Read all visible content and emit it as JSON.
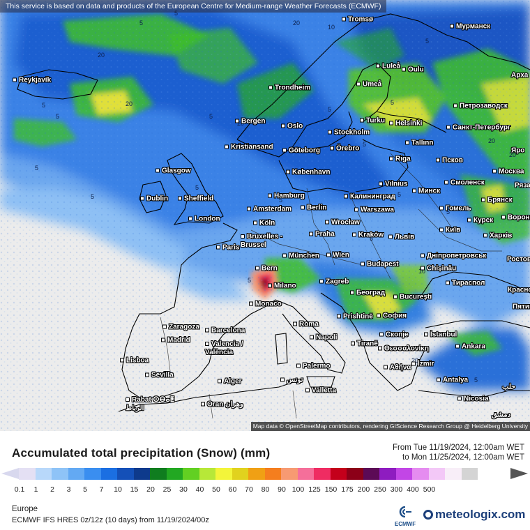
{
  "map": {
    "notice": "This service is based on data and products of the European Centre for Medium-range Weather Forecasts (ECMWF)",
    "attribution": "Map data © OpenStreetMap contributors, rendering GIScience Research Group @ Heidelberg University",
    "cities": [
      {
        "name": "Tromsø"
      },
      {
        "name": "Мурманск"
      },
      {
        "name": "Reykjavík"
      },
      {
        "name": "Luleå"
      },
      {
        "name": "Oulu"
      },
      {
        "name": "Арха"
      },
      {
        "name": "Trondheim"
      },
      {
        "name": "Umeå"
      },
      {
        "name": "Петрозаводск"
      },
      {
        "name": "Bergen"
      },
      {
        "name": "Turku"
      },
      {
        "name": "Helsinki"
      },
      {
        "name": "Санкт-Петербург"
      },
      {
        "name": "Oslo"
      },
      {
        "name": "Stockholm"
      },
      {
        "name": "Kristiansand"
      },
      {
        "name": "Göteborg"
      },
      {
        "name": "Örebro"
      },
      {
        "name": "Tallinn"
      },
      {
        "name": "Яро"
      },
      {
        "name": "Glasgow"
      },
      {
        "name": "København"
      },
      {
        "name": "Riga"
      },
      {
        "name": "Псков"
      },
      {
        "name": "Москва"
      },
      {
        "name": "Vilnius"
      },
      {
        "name": "Минск"
      },
      {
        "name": "Смоленск"
      },
      {
        "name": "Dublin"
      },
      {
        "name": "Sheffield"
      },
      {
        "name": "Hamburg"
      },
      {
        "name": "Калининград"
      },
      {
        "name": "Брянск"
      },
      {
        "name": "Рязань"
      },
      {
        "name": "Amsterdam"
      },
      {
        "name": "Berlin"
      },
      {
        "name": "Warszawa"
      },
      {
        "name": "Гомель"
      },
      {
        "name": "London"
      },
      {
        "name": "Köln"
      },
      {
        "name": "Wrocław"
      },
      {
        "name": "Курск"
      },
      {
        "name": "Воронеж"
      },
      {
        "name": "Bruxelles - Brussel"
      },
      {
        "name": "Praha"
      },
      {
        "name": "Kraków"
      },
      {
        "name": "Львів"
      },
      {
        "name": "Київ"
      },
      {
        "name": "Харків"
      },
      {
        "name": "Paris"
      },
      {
        "name": "München"
      },
      {
        "name": "Wien"
      },
      {
        "name": "Дніпропетровськ"
      },
      {
        "name": "Ростов"
      },
      {
        "name": "Budapest"
      },
      {
        "name": "Chișinău"
      },
      {
        "name": "Bern"
      },
      {
        "name": "Milano"
      },
      {
        "name": "Zagreb"
      },
      {
        "name": "Тираспол"
      },
      {
        "name": "Красно"
      },
      {
        "name": "Београд"
      },
      {
        "name": "București"
      },
      {
        "name": "Monaco"
      },
      {
        "name": "Пятиг"
      },
      {
        "name": "Prishtinë"
      },
      {
        "name": "София"
      },
      {
        "name": "Zaragoza"
      },
      {
        "name": "Barcelona"
      },
      {
        "name": "Roma"
      },
      {
        "name": "Madrid"
      },
      {
        "name": "Napoli"
      },
      {
        "name": "Tiranë"
      },
      {
        "name": "Скопје"
      },
      {
        "name": "İstanbul"
      },
      {
        "name": "Valencia / València"
      },
      {
        "name": "Θεσσαλονίκη"
      },
      {
        "name": "Ankara"
      },
      {
        "name": "Lisboa"
      },
      {
        "name": "Sevilla"
      },
      {
        "name": "Αθήνα"
      },
      {
        "name": "İzmir"
      },
      {
        "name": "Palermo"
      },
      {
        "name": "Alger"
      },
      {
        "name": "تونس"
      },
      {
        "name": "Antalya"
      },
      {
        "name": "Valletta"
      },
      {
        "name": "Rabat ⵔⴱⴰⵟ الرباط"
      },
      {
        "name": "Oran وهران"
      },
      {
        "name": "Nicosia"
      },
      {
        "name": "حلب"
      },
      {
        "name": "دمشق"
      }
    ],
    "contour_labels": [
      "5",
      "5",
      "20",
      "10",
      "20",
      "5",
      "5",
      "5",
      "5",
      "20",
      "5",
      "20",
      "5",
      "5",
      "20",
      "5",
      "5",
      "5",
      "5",
      "20",
      "5",
      "10",
      "5",
      "20",
      "5",
      "5",
      "5"
    ]
  },
  "legend": {
    "title": "Accumulated total precipitation (Snow) (mm)",
    "from": "From Tue 11/19/2024, 12:00am WET",
    "to": "to Mon 11/25/2024, 12:00am WET",
    "ticks": [
      "0.1",
      "1",
      "2",
      "3",
      "5",
      "7",
      "10",
      "15",
      "20",
      "25",
      "30",
      "40",
      "50",
      "60",
      "70",
      "80",
      "90",
      "100",
      "125",
      "150",
      "175",
      "200",
      "250",
      "300",
      "400",
      "500"
    ],
    "colors": [
      "#e4e0f4",
      "#b8d8fa",
      "#8ec3f7",
      "#63a9f3",
      "#3a8ef0",
      "#1b6fe2",
      "#1450b8",
      "#0e3a8c",
      "#0f7d1f",
      "#22a822",
      "#62d022",
      "#b7e838",
      "#f3f53a",
      "#e1d21e",
      "#f0a014",
      "#f57e1e",
      "#f79a72",
      "#f56f9a",
      "#ef2c62",
      "#c4001b",
      "#8c0018",
      "#5c0a56",
      "#8e1cc0",
      "#c246e6",
      "#e58cf0",
      "#f3c8f7",
      "#f8eef8",
      "#d4d4d4"
    ],
    "left_arrow_color": "#d8d8ee",
    "right_arrow_color": "#555555",
    "region": "Europe",
    "model": "ECMWF IFS HRES 0z/12z (10 days) from  11/19/2024/00z",
    "ecmwf_logo_text": "ECMWF",
    "brand": "meteologix.com"
  }
}
